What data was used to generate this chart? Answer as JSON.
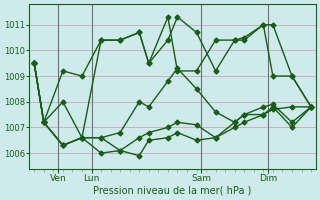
{
  "background_color": "#ceeaea",
  "grid_color": "#c8a8b8",
  "line_color": "#1a5c1a",
  "marker": "D",
  "markersize": 2.5,
  "linewidth": 1.0,
  "title": "Pression niveau de la mer( hPa )",
  "ylabel_ticks": [
    1006,
    1007,
    1008,
    1009,
    1010,
    1011
  ],
  "ylim": [
    1005.4,
    1011.8
  ],
  "xlim": [
    -0.5,
    29.5
  ],
  "vline_color": "#707070",
  "vlines_x": [
    2.5,
    6.0,
    17.5,
    24.5
  ],
  "series": [
    {
      "x": [
        0,
        1,
        3,
        5,
        7,
        9,
        11,
        12,
        14,
        15,
        17,
        19,
        21,
        22,
        24,
        25,
        27,
        29
      ],
      "y": [
        1009.5,
        1007.2,
        1009.2,
        1009.0,
        1010.4,
        1010.4,
        1010.7,
        1009.5,
        1010.4,
        1011.3,
        1010.7,
        1009.2,
        1010.4,
        1010.4,
        1011.0,
        1009.0,
        1009.0,
        1007.8
      ]
    },
    {
      "x": [
        0,
        1,
        3,
        5,
        7,
        9,
        11,
        12,
        14,
        15,
        17,
        19,
        21,
        22,
        24,
        25,
        27,
        29
      ],
      "y": [
        1009.5,
        1007.2,
        1006.3,
        1006.6,
        1006.6,
        1006.1,
        1006.6,
        1006.8,
        1007.0,
        1007.2,
        1007.1,
        1006.6,
        1007.0,
        1007.2,
        1007.5,
        1007.7,
        1007.8,
        1007.8
      ]
    },
    {
      "x": [
        0,
        1,
        3,
        5,
        7,
        9,
        11,
        12,
        14,
        15,
        17,
        19,
        21,
        22,
        24,
        25,
        27,
        29
      ],
      "y": [
        1009.5,
        1007.2,
        1006.3,
        1006.6,
        1006.6,
        1006.8,
        1008.0,
        1007.8,
        1008.8,
        1009.3,
        1008.5,
        1007.6,
        1007.2,
        1007.5,
        1007.8,
        1007.9,
        1007.2,
        1007.8
      ]
    },
    {
      "x": [
        0,
        1,
        3,
        5,
        7,
        9,
        11,
        12,
        14,
        15,
        17,
        19,
        21,
        22,
        24,
        25,
        27,
        29
      ],
      "y": [
        1009.5,
        1007.2,
        1006.3,
        1006.6,
        1006.0,
        1006.1,
        1005.9,
        1006.5,
        1006.6,
        1006.8,
        1006.5,
        1006.6,
        1007.2,
        1007.5,
        1007.5,
        1007.8,
        1007.0,
        1007.8
      ]
    },
    {
      "x": [
        0,
        1,
        3,
        5,
        7,
        9,
        11,
        12,
        14,
        15,
        17,
        19,
        21,
        22,
        24,
        25,
        27,
        29
      ],
      "y": [
        1009.5,
        1007.2,
        1008.0,
        1006.6,
        1010.4,
        1010.4,
        1010.7,
        1009.5,
        1011.3,
        1009.2,
        1009.2,
        1010.4,
        1010.4,
        1010.5,
        1011.0,
        1011.0,
        1009.0,
        1007.8
      ]
    }
  ],
  "xtick_positions": [
    2.5,
    6.0,
    17.5,
    24.5
  ],
  "xtick_labels": [
    "Ven",
    "Lun",
    "Sam",
    "Dim"
  ],
  "title_fontsize": 7,
  "ytick_fontsize": 6,
  "xtick_fontsize": 6.5
}
